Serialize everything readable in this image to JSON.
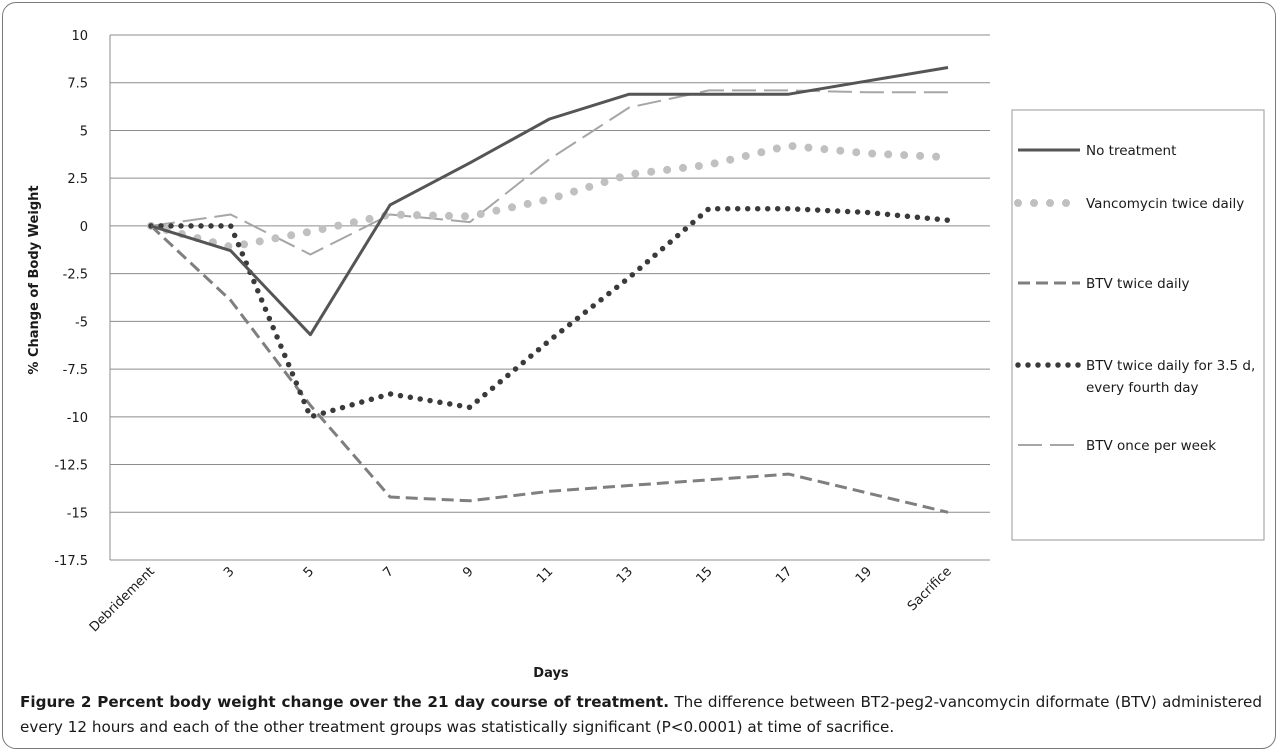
{
  "chart_data": {
    "type": "line",
    "xlabel": "Days",
    "ylabel": "% Change of Body Weight",
    "categories": [
      "Debridement",
      "3",
      "5",
      "7",
      "9",
      "11",
      "13",
      "15",
      "17",
      "19",
      "Sacrifice"
    ],
    "ylim": [
      -17.5,
      10
    ],
    "yticks": [
      10,
      7.5,
      5,
      2.5,
      0,
      -2.5,
      -5,
      -7.5,
      -10,
      -12.5,
      -15,
      -17.5
    ],
    "ytick_labels": [
      "10",
      "7.5",
      "5",
      "2.5",
      "0",
      "-2.5",
      "-5",
      "-7.5",
      "-10",
      "-12.5",
      "-15",
      "-17.5"
    ],
    "grid": true,
    "legend_position": "right",
    "series": [
      {
        "name": "No treatment",
        "style": "solid",
        "color": "#555555",
        "values": [
          0,
          -1.3,
          -5.7,
          1.1,
          3.3,
          5.6,
          6.9,
          6.9,
          6.9,
          7.6,
          8.3
        ]
      },
      {
        "name": "Vancomycin twice daily",
        "style": "dotted-large",
        "color": "#c0c0c0",
        "values": [
          0,
          -1.1,
          -0.3,
          0.6,
          0.5,
          1.4,
          2.7,
          3.2,
          4.2,
          3.8,
          3.6
        ]
      },
      {
        "name": "BTV twice daily",
        "style": "dashed",
        "color": "#7f7f7f",
        "values": [
          0,
          -3.9,
          -9.4,
          -14.2,
          -14.4,
          -13.9,
          -13.6,
          -13.3,
          -13.0,
          -14.0,
          -15.0
        ]
      },
      {
        "name": "BTV twice daily for 3.5 d,\nevery fourth day",
        "style": "dotted",
        "color": "#3a3a3a",
        "values": [
          0,
          0,
          -10.0,
          -8.8,
          -9.5,
          -6.0,
          -2.7,
          0.9,
          0.9,
          0.7,
          0.3
        ]
      },
      {
        "name": "BTV once per week",
        "style": "longdash",
        "color": "#a6a6a6",
        "values": [
          0,
          0.6,
          -1.5,
          0.6,
          0.2,
          3.5,
          6.2,
          7.1,
          7.1,
          7.0,
          7.0
        ]
      }
    ]
  },
  "caption": {
    "label": "Figure 2 Percent body weight change over the 21 day course of treatment.",
    "text": "The difference between BT2-peg2-vancomycin diformate (BTV) administered every 12 hours and each of the other treatment groups was statistically significant (P<0.0001) at time of sacrifice."
  }
}
